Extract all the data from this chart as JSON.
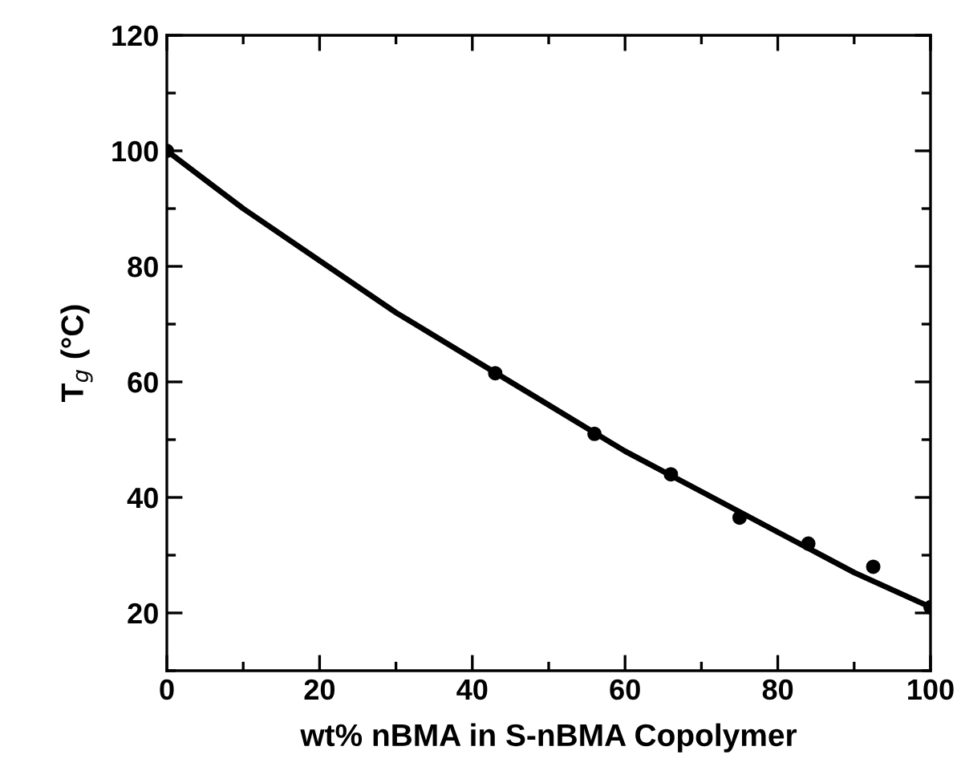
{
  "chart_data": {
    "type": "scatter",
    "xlabel": "wt% nBMA in S-nBMA Copolymer",
    "ylabel": "T$_{g}$ (°C)",
    "xlim": [
      0,
      100
    ],
    "ylim": [
      10,
      120
    ],
    "xticks": [
      0,
      {
        "value": 10,
        "label": null
      },
      20,
      {
        "value": 30,
        "label": null
      },
      40,
      {
        "value": 50,
        "label": null
      },
      60,
      {
        "value": 70,
        "label": null
      },
      80,
      {
        "value": 90,
        "label": null
      },
      100
    ],
    "yticks": [
      {
        "value": 10,
        "label": null
      },
      20,
      {
        "value": 30,
        "label": null
      },
      40,
      {
        "value": 50,
        "label": null
      },
      60,
      {
        "value": 70,
        "label": null
      },
      80,
      {
        "value": 90,
        "label": null
      },
      100,
      {
        "value": 110,
        "label": null
      },
      120
    ],
    "grid": false,
    "legend": false,
    "series": [
      {
        "marker": "circle",
        "color": "#000000",
        "x": [
          0,
          43,
          56,
          66,
          75,
          84,
          92.5,
          100
        ],
        "values": [
          100,
          61.5,
          51,
          44,
          36.5,
          32,
          28,
          21
        ]
      },
      {
        "type": "line",
        "color": "#000000",
        "marker": "none",
        "line_style": "solid",
        "x": [
          0,
          10,
          20,
          30,
          40,
          50,
          60,
          70,
          80,
          90,
          100
        ],
        "values": [
          100,
          90,
          81,
          72,
          64,
          56,
          48,
          41,
          34,
          27,
          21
        ]
      }
    ]
  }
}
